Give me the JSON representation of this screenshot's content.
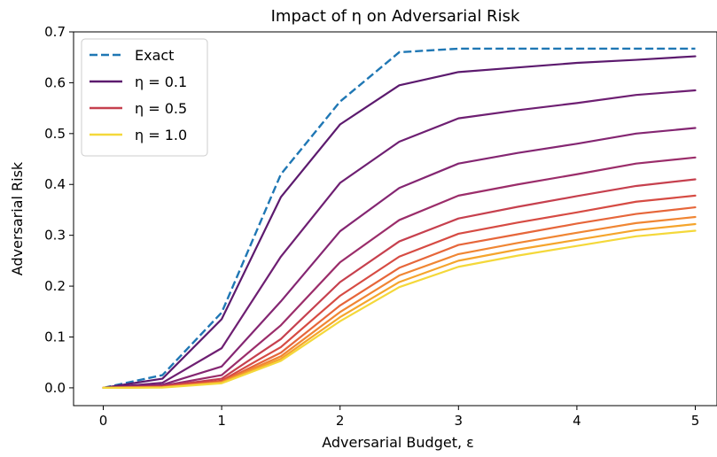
{
  "chart_data": {
    "type": "line",
    "title": "Impact of η on Adversarial Risk",
    "xlabel": "Adversarial Budget, ε",
    "ylabel": "Adversarial Risk",
    "xlim": [
      -0.25,
      5.0
    ],
    "ylim": [
      -0.035,
      0.7
    ],
    "xticks": [
      0,
      1,
      2,
      3,
      4,
      5
    ],
    "xtick_labels": [
      "0",
      "1",
      "2",
      "3",
      "4",
      "5"
    ],
    "yticks": [
      0.0,
      0.1,
      0.2,
      0.3,
      0.4,
      0.5,
      0.6,
      0.7
    ],
    "ytick_labels": [
      "0.0",
      "0.1",
      "0.2",
      "0.3",
      "0.4",
      "0.5",
      "0.6",
      "0.7"
    ],
    "grid": false,
    "legend_position": "top-left",
    "x": [
      0,
      0.5,
      1.0,
      1.5,
      2.0,
      2.5,
      3.0,
      3.5,
      4.0,
      4.5,
      5.0
    ],
    "series": [
      {
        "name": "Exact",
        "legend": true,
        "dashed": true,
        "color": "#1f77b4",
        "values": [
          0.0,
          0.025,
          0.148,
          0.42,
          0.563,
          0.66,
          0.667,
          0.667,
          0.667,
          0.667,
          0.667
        ]
      },
      {
        "name": "η = 0.1",
        "legend": true,
        "dashed": false,
        "color": "#5c1a6e",
        "values": [
          0.0,
          0.018,
          0.135,
          0.375,
          0.518,
          0.595,
          0.621,
          0.63,
          0.639,
          0.645,
          0.652
        ]
      },
      {
        "legend": false,
        "dashed": false,
        "color": "#6e1f72",
        "values": [
          0.0,
          0.01,
          0.078,
          0.258,
          0.403,
          0.484,
          0.53,
          0.546,
          0.56,
          0.576,
          0.585
        ]
      },
      {
        "legend": false,
        "dashed": false,
        "color": "#842672",
        "values": [
          0.0,
          0.006,
          0.042,
          0.17,
          0.308,
          0.393,
          0.441,
          0.462,
          0.48,
          0.5,
          0.511
        ]
      },
      {
        "legend": false,
        "dashed": false,
        "color": "#9b2d6a",
        "values": [
          0.0,
          0.004,
          0.025,
          0.123,
          0.247,
          0.33,
          0.378,
          0.4,
          0.42,
          0.441,
          0.453
        ]
      },
      {
        "name": "η = 0.5",
        "legend": true,
        "dashed": false,
        "color": "#c6404e",
        "values": [
          0.0,
          0.003,
          0.018,
          0.096,
          0.208,
          0.288,
          0.333,
          0.356,
          0.377,
          0.397,
          0.41
        ]
      },
      {
        "legend": false,
        "dashed": false,
        "color": "#d64b43",
        "values": [
          0.0,
          0.002,
          0.014,
          0.08,
          0.181,
          0.258,
          0.303,
          0.325,
          0.345,
          0.366,
          0.378
        ]
      },
      {
        "legend": false,
        "dashed": false,
        "color": "#e6663a",
        "values": [
          0.0,
          0.0015,
          0.012,
          0.069,
          0.162,
          0.236,
          0.281,
          0.302,
          0.323,
          0.342,
          0.355
        ]
      },
      {
        "legend": false,
        "dashed": false,
        "color": "#f08633",
        "values": [
          0.0,
          0.001,
          0.011,
          0.062,
          0.149,
          0.221,
          0.263,
          0.285,
          0.305,
          0.324,
          0.336
        ]
      },
      {
        "legend": false,
        "dashed": false,
        "color": "#f5a52c",
        "values": [
          0.0,
          0.001,
          0.01,
          0.057,
          0.139,
          0.208,
          0.25,
          0.272,
          0.291,
          0.31,
          0.322
        ]
      },
      {
        "name": "η = 1.0",
        "legend": true,
        "dashed": false,
        "color": "#f4d83a",
        "values": [
          0.0,
          0.0005,
          0.009,
          0.053,
          0.131,
          0.198,
          0.238,
          0.26,
          0.279,
          0.298,
          0.309
        ]
      }
    ]
  }
}
